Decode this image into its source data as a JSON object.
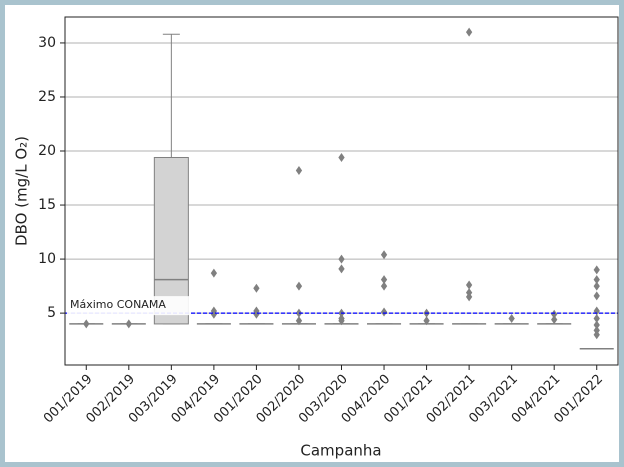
{
  "chart_data": {
    "type": "box",
    "x_label": "Campanha",
    "y_label": "DBO (mg/L O₂)",
    "categories": [
      "001/2019",
      "002/2019",
      "003/2019",
      "004/2019",
      "001/2020",
      "002/2020",
      "003/2020",
      "004/2020",
      "001/2021",
      "002/2021",
      "003/2021",
      "004/2021",
      "001/2022"
    ],
    "boxes": [
      {
        "min": 4,
        "q1": 4,
        "median": 4,
        "q3": 4,
        "max": 4,
        "outliers": [
          4
        ]
      },
      {
        "min": 4,
        "q1": 4,
        "median": 4,
        "q3": 4,
        "max": 4,
        "outliers": [
          4
        ]
      },
      {
        "min": 4,
        "q1": 4,
        "median": 8.1,
        "q3": 19.4,
        "max": 30.8,
        "outliers": []
      },
      {
        "min": 4,
        "q1": 4,
        "median": 4,
        "q3": 4,
        "max": 4,
        "outliers": [
          8.7,
          5.2,
          4.9
        ]
      },
      {
        "min": 4,
        "q1": 4,
        "median": 4,
        "q3": 4,
        "max": 4,
        "outliers": [
          7.3,
          5.2,
          4.9
        ]
      },
      {
        "min": 4,
        "q1": 4,
        "median": 4,
        "q3": 4,
        "max": 4,
        "outliers": [
          18.2,
          7.5,
          5,
          4.3
        ]
      },
      {
        "min": 4,
        "q1": 4,
        "median": 4,
        "q3": 4,
        "max": 4,
        "outliers": [
          19.4,
          10,
          9.1,
          5,
          4.5,
          4.3
        ]
      },
      {
        "min": 4,
        "q1": 4,
        "median": 4,
        "q3": 4,
        "max": 4,
        "outliers": [
          10.4,
          8.1,
          7.5,
          5.1
        ]
      },
      {
        "min": 4,
        "q1": 4,
        "median": 4,
        "q3": 4,
        "max": 4,
        "outliers": [
          5,
          4.3
        ]
      },
      {
        "min": 4,
        "q1": 4,
        "median": 4,
        "q3": 4,
        "max": 4,
        "outliers": [
          31,
          7.6,
          6.9,
          6.5
        ]
      },
      {
        "min": 4,
        "q1": 4,
        "median": 4,
        "q3": 4,
        "max": 4,
        "outliers": [
          4.5
        ]
      },
      {
        "min": 4,
        "q1": 4,
        "median": 4,
        "q3": 4,
        "max": 4,
        "outliers": [
          4.9,
          4.4
        ]
      },
      {
        "min": 1.7,
        "q1": 1.7,
        "median": 1.7,
        "q3": 1.7,
        "max": 1.7,
        "outliers": [
          9,
          8.1,
          7.5,
          6.6,
          5.2,
          4.5,
          3.9,
          3.4,
          3
        ]
      }
    ],
    "box_color": "#d3d3d3",
    "edge_color": "#808080",
    "reference_line": {
      "value": 5,
      "label": "Máximo CONAMA",
      "color": "#0000ff"
    },
    "ylim": [
      0.2,
      32.4
    ],
    "yticks": [
      5,
      10,
      15,
      20,
      25,
      30
    ],
    "grid": true
  }
}
